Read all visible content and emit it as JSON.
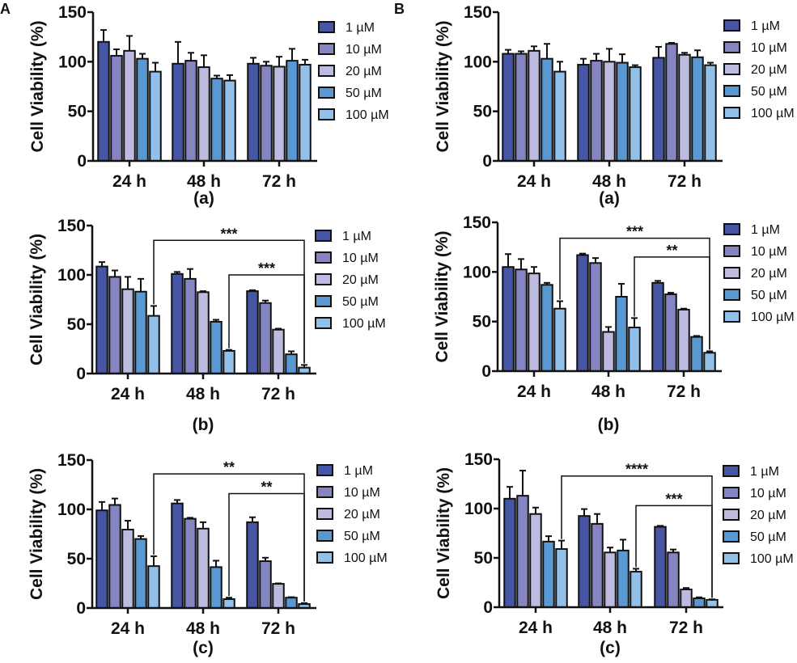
{
  "figure": {
    "panel_labels": [
      "A",
      "B"
    ]
  },
  "chart_data": [
    {
      "type": "bar",
      "panel": "A",
      "subtitle": "(a)",
      "categories": [
        "24 h",
        "48 h",
        "72 h"
      ],
      "ylabel": "Cell Viability (%)",
      "xlabel": "",
      "ylim": [
        0,
        150
      ],
      "yticks": [
        0,
        50,
        100,
        150
      ],
      "legend": "right",
      "series": [
        {
          "name": "1 µM",
          "color": "#4656a5",
          "values": [
            120,
            98,
            98
          ],
          "errors": [
            12,
            22,
            6
          ]
        },
        {
          "name": "10 µM",
          "color": "#8585c2",
          "values": [
            106,
            101,
            96
          ],
          "errors": [
            6.5,
            8,
            4
          ]
        },
        {
          "name": "20 µM",
          "color": "#bdbce0",
          "values": [
            111,
            94.5,
            95
          ],
          "errors": [
            15,
            12,
            10
          ]
        },
        {
          "name": "50 µM",
          "color": "#5a98d2",
          "values": [
            103,
            83,
            101
          ],
          "errors": [
            5,
            3,
            12
          ]
        },
        {
          "name": "100 µM",
          "color": "#92c0e8",
          "values": [
            90,
            81,
            97
          ],
          "errors": [
            9,
            5.5,
            5
          ]
        }
      ],
      "significance": []
    },
    {
      "type": "bar",
      "panel": "B",
      "subtitle": "(a)",
      "categories": [
        "24 h",
        "48 h",
        "72 h"
      ],
      "ylabel": "Cell Viability (%)",
      "xlabel": "",
      "ylim": [
        0,
        150
      ],
      "yticks": [
        0,
        50,
        100,
        150
      ],
      "legend": "right",
      "series": [
        {
          "name": "1 µM",
          "color": "#4656a5",
          "values": [
            108,
            97,
            104
          ],
          "errors": [
            4,
            6,
            11
          ]
        },
        {
          "name": "10 µM",
          "color": "#8585c2",
          "values": [
            108,
            101,
            118
          ],
          "errors": [
            2.5,
            7,
            1
          ]
        },
        {
          "name": "20 µM",
          "color": "#bdbce0",
          "values": [
            111,
            100,
            107
          ],
          "errors": [
            4.5,
            13,
            2
          ]
        },
        {
          "name": "50 µM",
          "color": "#5a98d2",
          "values": [
            103,
            99,
            104.5
          ],
          "errors": [
            15,
            8.5,
            7
          ]
        },
        {
          "name": "100 µM",
          "color": "#92c0e8",
          "values": [
            90,
            94.5,
            96.5
          ],
          "errors": [
            10,
            2,
            2.5
          ]
        }
      ],
      "significance": []
    },
    {
      "type": "bar",
      "panel": "A",
      "subtitle": "(b)",
      "categories": [
        "24 h",
        "48 h",
        "72 h"
      ],
      "ylabel": "Cell Viability (%)",
      "xlabel": "",
      "ylim": [
        0,
        150
      ],
      "yticks": [
        0,
        50,
        100,
        150
      ],
      "legend": "right",
      "series": [
        {
          "name": "1 µM",
          "color": "#4656a5",
          "values": [
            108.5,
            101,
            83.5
          ],
          "errors": [
            4.5,
            2,
            1
          ]
        },
        {
          "name": "10 µM",
          "color": "#8585c2",
          "values": [
            98,
            96,
            71.5
          ],
          "errors": [
            6.5,
            10,
            2.5
          ]
        },
        {
          "name": "20 µM",
          "color": "#bdbce0",
          "values": [
            85.5,
            82.5,
            44.5
          ],
          "errors": [
            12.5,
            1,
            1
          ]
        },
        {
          "name": "50 µM",
          "color": "#5a98d2",
          "values": [
            83,
            52.5,
            19.5
          ],
          "errors": [
            13,
            2,
            3
          ]
        },
        {
          "name": "100 µM",
          "color": "#92c0e8",
          "values": [
            58.5,
            23,
            6
          ],
          "errors": [
            10,
            1,
            2.7
          ]
        }
      ],
      "significance": [
        {
          "from": [
            "24 h",
            "100 µM"
          ],
          "to": [
            "72 h",
            "100 µM"
          ],
          "label": "***",
          "level": 135
        },
        {
          "from": [
            "48 h",
            "100 µM"
          ],
          "to": [
            "72 h",
            "100 µM"
          ],
          "label": "***",
          "level": 100
        }
      ]
    },
    {
      "type": "bar",
      "panel": "B",
      "subtitle": "(b)",
      "categories": [
        "24 h",
        "48 h",
        "72 h"
      ],
      "ylabel": "Cell Viability (%)",
      "xlabel": "",
      "ylim": [
        0,
        150
      ],
      "yticks": [
        0,
        50,
        100,
        150
      ],
      "legend": "right",
      "series": [
        {
          "name": "1 µM",
          "color": "#4656a5",
          "values": [
            105,
            117,
            89
          ],
          "errors": [
            13,
            1.5,
            2
          ]
        },
        {
          "name": "10 µM",
          "color": "#8585c2",
          "values": [
            102.5,
            109,
            77.5
          ],
          "errors": [
            10.5,
            5,
            1.5
          ]
        },
        {
          "name": "20 µM",
          "color": "#bdbce0",
          "values": [
            98.5,
            39.5,
            62
          ],
          "errors": [
            6.5,
            5,
            1
          ]
        },
        {
          "name": "50 µM",
          "color": "#5a98d2",
          "values": [
            87,
            75,
            34.5
          ],
          "errors": [
            2,
            13,
            1
          ]
        },
        {
          "name": "100 µM",
          "color": "#92c0e8",
          "values": [
            63,
            44,
            18.5
          ],
          "errors": [
            7.5,
            9.5,
            1.5
          ]
        }
      ],
      "significance": [
        {
          "from": [
            "24 h",
            "100 µM"
          ],
          "to": [
            "72 h",
            "100 µM"
          ],
          "label": "***",
          "level": 134
        },
        {
          "from": [
            "48 h",
            "100 µM"
          ],
          "to": [
            "72 h",
            "100 µM"
          ],
          "label": "**",
          "level": 115
        }
      ]
    },
    {
      "type": "bar",
      "panel": "A",
      "subtitle": "(c)",
      "categories": [
        "24 h",
        "48 h",
        "72 h"
      ],
      "ylabel": "Cell Viability (%)",
      "xlabel": "",
      "ylim": [
        0,
        150
      ],
      "yticks": [
        0,
        50,
        100,
        150
      ],
      "legend": "right",
      "series": [
        {
          "name": "1 µM",
          "color": "#4656a5",
          "values": [
            99,
            106,
            87
          ],
          "errors": [
            8.5,
            3.5,
            5
          ]
        },
        {
          "name": "10 µM",
          "color": "#8585c2",
          "values": [
            104.5,
            90.5,
            47.5
          ],
          "errors": [
            6.5,
            1,
            3.5
          ]
        },
        {
          "name": "20 µM",
          "color": "#bdbce0",
          "values": [
            79.5,
            80.5,
            24.5
          ],
          "errors": [
            9,
            6.5,
            0.5
          ]
        },
        {
          "name": "50 µM",
          "color": "#5a98d2",
          "values": [
            70,
            41.5,
            10.5
          ],
          "errors": [
            3,
            6.5,
            0.5
          ]
        },
        {
          "name": "100 µM",
          "color": "#92c0e8",
          "values": [
            42.5,
            9,
            4
          ],
          "errors": [
            10,
            1.5,
            1
          ]
        }
      ],
      "significance": [
        {
          "from": [
            "24 h",
            "100 µM"
          ],
          "to": [
            "72 h",
            "100 µM"
          ],
          "label": "**",
          "level": 136
        },
        {
          "from": [
            "48 h",
            "100 µM"
          ],
          "to": [
            "72 h",
            "100 µM"
          ],
          "label": "**",
          "level": 116
        }
      ]
    },
    {
      "type": "bar",
      "panel": "B",
      "subtitle": "(c)",
      "categories": [
        "24 h",
        "48 h",
        "72 h"
      ],
      "ylabel": "Cell Viability (%)",
      "xlabel": "",
      "ylim": [
        0,
        150
      ],
      "yticks": [
        0,
        50,
        100,
        150
      ],
      "legend": "right",
      "series": [
        {
          "name": "1 µM",
          "color": "#4656a5",
          "values": [
            110,
            92.5,
            81.5
          ],
          "errors": [
            12,
            7,
            1
          ]
        },
        {
          "name": "10 µM",
          "color": "#8585c2",
          "values": [
            113,
            84.5,
            55.5
          ],
          "errors": [
            25.5,
            10,
            3
          ]
        },
        {
          "name": "20 µM",
          "color": "#bdbce0",
          "values": [
            94.5,
            55.5,
            18
          ],
          "errors": [
            6.5,
            5,
            1.5
          ]
        },
        {
          "name": "50 µM",
          "color": "#5a98d2",
          "values": [
            66.5,
            57.5,
            9
          ],
          "errors": [
            5.5,
            11,
            1
          ]
        },
        {
          "name": "100 µM",
          "color": "#92c0e8",
          "values": [
            59,
            36,
            7.5
          ],
          "errors": [
            8.5,
            3,
            0.5
          ]
        }
      ],
      "significance": [
        {
          "from": [
            "24 h",
            "100 µM"
          ],
          "to": [
            "72 h",
            "100 µM"
          ],
          "label": "****",
          "level": 133
        },
        {
          "from": [
            "48 h",
            "100 µM"
          ],
          "to": [
            "72 h",
            "100 µM"
          ],
          "label": "***",
          "level": 103
        }
      ]
    }
  ]
}
